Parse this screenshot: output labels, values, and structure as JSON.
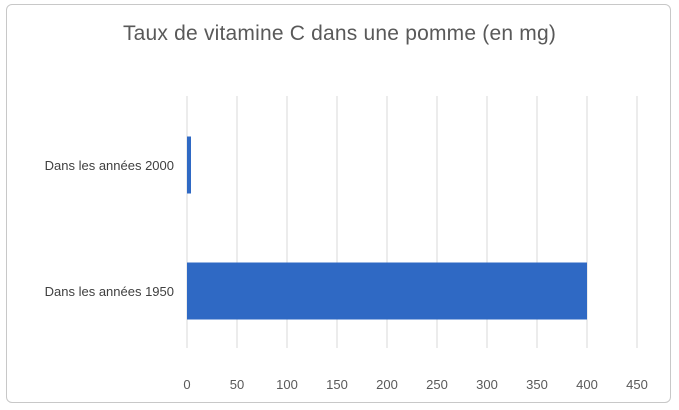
{
  "chart_data": {
    "type": "bar",
    "orientation": "horizontal",
    "title": "Taux de vitamine C dans une pomme (en mg)",
    "categories": [
      "Dans les années 2000",
      "Dans les années 1950"
    ],
    "values": [
      4,
      400
    ],
    "xlabel": "",
    "ylabel": "",
    "xlim": [
      0,
      450
    ],
    "xticks": [
      "0",
      "50",
      "100",
      "150",
      "200",
      "250",
      "300",
      "350",
      "400",
      "450"
    ],
    "grid": "vertical",
    "legend": "none",
    "bar_color": "#2f69c4",
    "grid_color": "#d9d9d9"
  }
}
